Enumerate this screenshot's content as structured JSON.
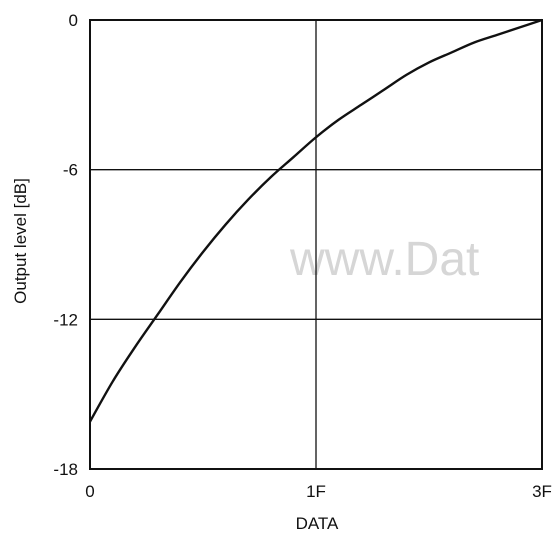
{
  "chart_data": {
    "type": "line",
    "title": "",
    "xlabel": "DATA",
    "ylabel": "Output level [dB]",
    "x_ticks": [
      {
        "value": 0,
        "label": "0"
      },
      {
        "value": 1,
        "label": "1F"
      },
      {
        "value": 2,
        "label": "3F"
      }
    ],
    "y_ticks": [
      {
        "value": 0,
        "label": "0"
      },
      {
        "value": -6,
        "label": "-6"
      },
      {
        "value": -12,
        "label": "-12"
      },
      {
        "value": -18,
        "label": "-18"
      }
    ],
    "xlim": [
      0,
      2
    ],
    "ylim": [
      -18,
      0
    ],
    "grid": true,
    "series": [
      {
        "x": [
          0,
          0.1,
          0.2,
          0.3,
          0.4,
          0.5,
          0.6,
          0.7,
          0.8,
          0.9,
          1.0,
          1.1,
          1.2,
          1.3,
          1.4,
          1.5,
          1.6,
          1.7,
          1.8,
          1.9,
          2.0
        ],
        "y": [
          -16.1,
          -14.5,
          -13.1,
          -11.8,
          -10.5,
          -9.3,
          -8.2,
          -7.2,
          -6.3,
          -5.5,
          -4.7,
          -4.0,
          -3.4,
          -2.8,
          -2.2,
          -1.7,
          -1.3,
          -0.9,
          -0.6,
          -0.3,
          0
        ],
        "color": "#111111"
      }
    ],
    "watermark": "www.Dat"
  }
}
